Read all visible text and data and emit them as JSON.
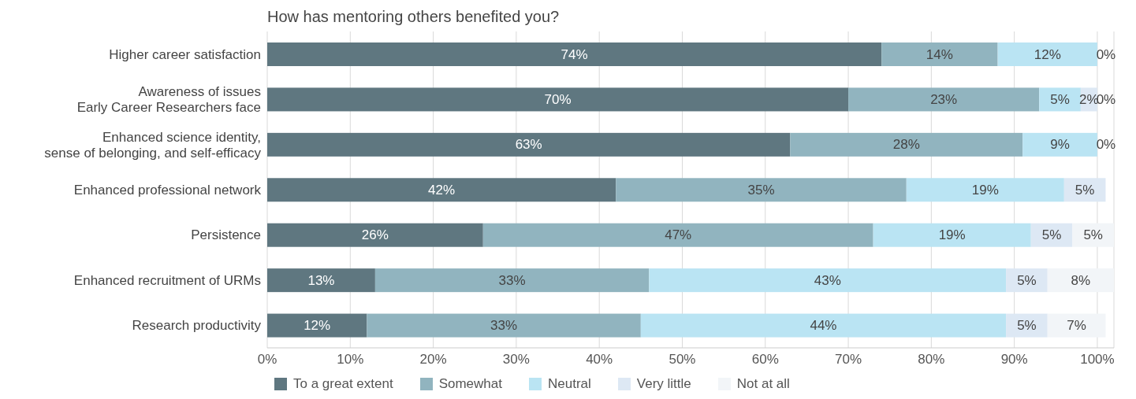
{
  "chart_data": {
    "type": "bar",
    "orientation": "horizontal",
    "stacked": true,
    "title": "How has mentoring others benefited you?",
    "categories": [
      "Higher career satisfaction",
      "Awareness of issues\nEarly Career Researchers face",
      "Enhanced science identity,\nsense of belonging, and self-efficacy",
      "Enhanced professional network",
      "Persistence",
      "Enhanced recruitment of URMs",
      "Research productivity"
    ],
    "series": [
      {
        "name": "To a great extent",
        "color": "#5f7780",
        "values": [
          74,
          70,
          63,
          42,
          26,
          13,
          12
        ],
        "value_labels": [
          "74%",
          "70%",
          "63%",
          "42%",
          "26%",
          "13%",
          "12%"
        ]
      },
      {
        "name": "Somewhat",
        "color": "#91b4bf",
        "values": [
          14,
          23,
          28,
          35,
          47,
          33,
          33
        ],
        "value_labels": [
          "14%",
          "23%",
          "28%",
          "35%",
          "47%",
          "33%",
          "33%"
        ]
      },
      {
        "name": "Neutral",
        "color": "#bae4f3",
        "values": [
          12,
          5,
          9,
          19,
          19,
          43,
          44
        ],
        "value_labels": [
          "12%",
          "5%",
          "9%",
          "19%",
          "19%",
          "43%",
          "44%"
        ]
      },
      {
        "name": "Very little",
        "color": "#dde8f4",
        "values": [
          0,
          2,
          0,
          5,
          5,
          5,
          5
        ],
        "value_labels": [
          null,
          "2%",
          null,
          "5%",
          "5%",
          "5%",
          "5%"
        ]
      },
      {
        "name": "Not at all",
        "color": "#f2f5f8",
        "values": [
          0,
          0,
          0,
          0,
          5,
          8,
          7
        ],
        "value_labels": [
          "0%",
          "0%",
          "0%",
          null,
          "5%",
          "8%",
          "7%"
        ]
      }
    ],
    "xlim": [
      0,
      102
    ],
    "xticks": [
      {
        "value": 0,
        "label": "0%"
      },
      {
        "value": 10,
        "label": "10%"
      },
      {
        "value": 20,
        "label": "20%"
      },
      {
        "value": 30,
        "label": "30%"
      },
      {
        "value": 40,
        "label": "40%"
      },
      {
        "value": 50,
        "label": "50%"
      },
      {
        "value": 60,
        "label": "60%"
      },
      {
        "value": 70,
        "label": "70%"
      },
      {
        "value": 80,
        "label": "80%"
      },
      {
        "value": 90,
        "label": "90%"
      },
      {
        "value": 100,
        "label": "100%"
      }
    ],
    "grid": "x",
    "legend": "bottom"
  }
}
